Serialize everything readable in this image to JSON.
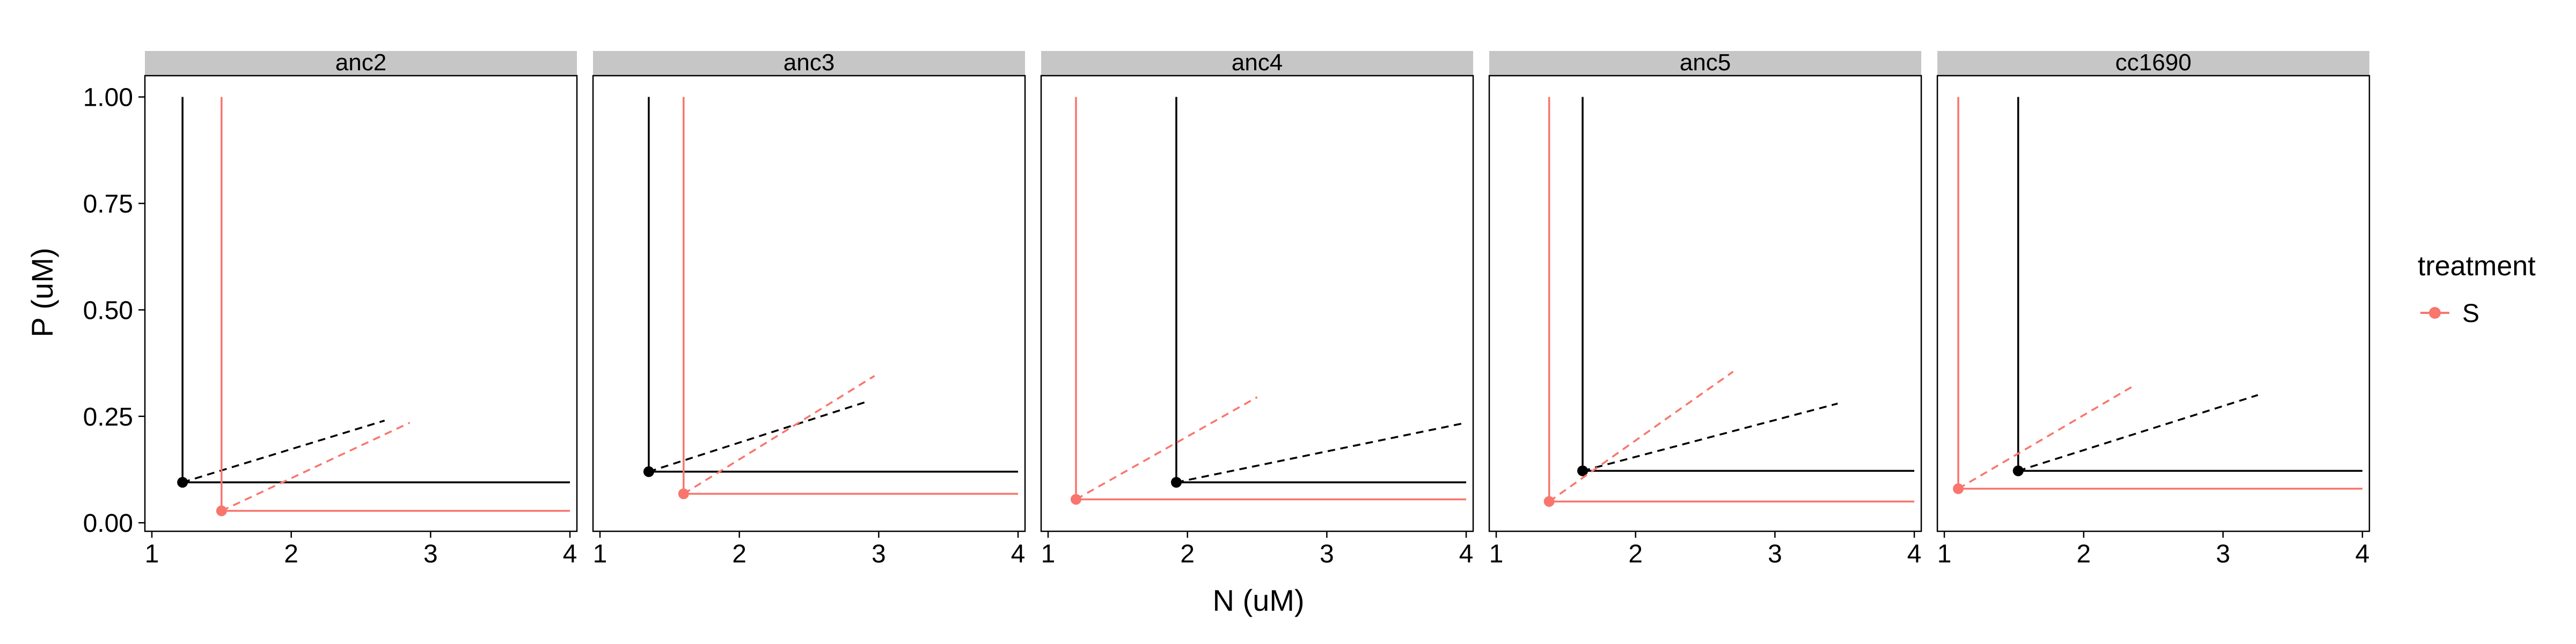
{
  "chart_data": {
    "type": "line",
    "xlabel": "N (uM)",
    "ylabel": "P (uM)",
    "xlim": [
      0.95,
      4.05
    ],
    "ylim": [
      -0.02,
      1.05
    ],
    "x_ticks": [
      "1",
      "2",
      "3",
      "4"
    ],
    "y_ticks": [
      "0.00",
      "0.25",
      "0.50",
      "0.75",
      "1.00"
    ],
    "legend": {
      "title": "treatment",
      "entries": [
        "S"
      ],
      "position": "right"
    },
    "colors": {
      "S": "#F8766D",
      "reference": "#000000",
      "strip": "#C6C6C6"
    },
    "grid": false,
    "facets": [
      {
        "label": "anc2",
        "black": {
          "n_star": 1.22,
          "p_star": 0.095,
          "slope_end": [
            2.67,
            0.24
          ]
        },
        "red": {
          "n_star": 1.5,
          "p_star": 0.028,
          "slope_end": [
            2.85,
            0.235
          ]
        }
      },
      {
        "label": "anc3",
        "black": {
          "n_star": 1.35,
          "p_star": 0.12,
          "slope_end": [
            2.92,
            0.285
          ]
        },
        "red": {
          "n_star": 1.6,
          "p_star": 0.068,
          "slope_end": [
            2.97,
            0.345
          ]
        }
      },
      {
        "label": "anc4",
        "black": {
          "n_star": 1.92,
          "p_star": 0.095,
          "slope_end": [
            4.0,
            0.235
          ]
        },
        "red": {
          "n_star": 1.2,
          "p_star": 0.055,
          "slope_end": [
            2.5,
            0.295
          ]
        }
      },
      {
        "label": "anc5",
        "black": {
          "n_star": 1.62,
          "p_star": 0.122,
          "slope_end": [
            3.45,
            0.28
          ]
        },
        "red": {
          "n_star": 1.38,
          "p_star": 0.05,
          "slope_end": [
            2.7,
            0.355
          ]
        }
      },
      {
        "label": "cc1690",
        "black": {
          "n_star": 1.53,
          "p_star": 0.122,
          "slope_end": [
            3.25,
            0.3
          ]
        },
        "red": {
          "n_star": 1.1,
          "p_star": 0.08,
          "slope_end": [
            2.35,
            0.32
          ]
        }
      }
    ]
  }
}
